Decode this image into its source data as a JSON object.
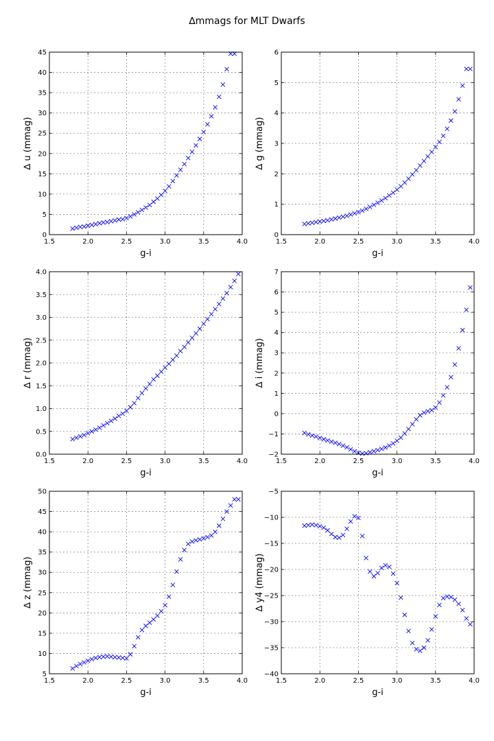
{
  "figure_title": "∆mmags for MLT Dwarfs",
  "marker_color": "#0000ff",
  "grid": true,
  "chart_data": [
    {
      "type": "scatter",
      "title": "",
      "xlabel": "g-i",
      "ylabel": "∆ u (mmag)",
      "xlim": [
        1.5,
        4.0
      ],
      "ylim": [
        0,
        45
      ],
      "xticks": [
        "1.5",
        "2.0",
        "2.5",
        "3.0",
        "3.5",
        "4.0"
      ],
      "yticks": [
        "0",
        "5",
        "10",
        "15",
        "20",
        "25",
        "30",
        "35",
        "40",
        "45"
      ],
      "x": [
        1.8,
        1.85,
        1.9,
        1.95,
        2.0,
        2.05,
        2.1,
        2.15,
        2.2,
        2.25,
        2.3,
        2.35,
        2.4,
        2.45,
        2.5,
        2.55,
        2.6,
        2.65,
        2.7,
        2.75,
        2.8,
        2.85,
        2.9,
        2.95,
        3.0,
        3.05,
        3.1,
        3.15,
        3.2,
        3.25,
        3.3,
        3.35,
        3.4,
        3.45,
        3.5,
        3.55,
        3.6,
        3.65,
        3.7,
        3.75,
        3.8,
        3.85,
        3.9
      ],
      "y": [
        1.5,
        1.7,
        1.9,
        2.0,
        2.2,
        2.4,
        2.6,
        2.8,
        3.0,
        3.1,
        3.3,
        3.5,
        3.7,
        3.8,
        4.1,
        4.5,
        5.0,
        5.5,
        6.1,
        6.7,
        7.3,
        8.1,
        8.9,
        9.8,
        10.8,
        11.9,
        13.2,
        14.6,
        16.0,
        17.4,
        18.9,
        20.4,
        22.0,
        23.6,
        25.3,
        27.2,
        29.2,
        31.4,
        34.0,
        37.0,
        40.8,
        44.6,
        44.6
      ]
    },
    {
      "type": "scatter",
      "title": "",
      "xlabel": "g-i",
      "ylabel": "∆ g (mmag)",
      "xlim": [
        1.5,
        4.0
      ],
      "ylim": [
        0,
        6
      ],
      "xticks": [
        "1.5",
        "2.0",
        "2.5",
        "3.0",
        "3.5",
        "4.0"
      ],
      "yticks": [
        "0",
        "1",
        "2",
        "3",
        "4",
        "5",
        "6"
      ],
      "x": [
        1.8,
        1.85,
        1.9,
        1.95,
        2.0,
        2.05,
        2.1,
        2.15,
        2.2,
        2.25,
        2.3,
        2.35,
        2.4,
        2.45,
        2.5,
        2.55,
        2.6,
        2.65,
        2.7,
        2.75,
        2.8,
        2.85,
        2.9,
        2.95,
        3.0,
        3.05,
        3.1,
        3.15,
        3.2,
        3.25,
        3.3,
        3.35,
        3.4,
        3.45,
        3.5,
        3.55,
        3.6,
        3.65,
        3.7,
        3.75,
        3.8,
        3.85,
        3.9,
        3.95
      ],
      "y": [
        0.35,
        0.37,
        0.39,
        0.41,
        0.43,
        0.45,
        0.47,
        0.5,
        0.53,
        0.56,
        0.59,
        0.62,
        0.66,
        0.7,
        0.74,
        0.79,
        0.85,
        0.91,
        0.98,
        1.05,
        1.12,
        1.2,
        1.29,
        1.38,
        1.48,
        1.59,
        1.71,
        1.84,
        1.98,
        2.12,
        2.27,
        2.42,
        2.57,
        2.72,
        2.88,
        3.05,
        3.25,
        3.48,
        3.75,
        4.05,
        4.45,
        4.9,
        5.45,
        5.45
      ]
    },
    {
      "type": "scatter",
      "title": "",
      "xlabel": "g-i",
      "ylabel": "∆ r (mmag)",
      "xlim": [
        1.5,
        4.0
      ],
      "ylim": [
        0,
        4
      ],
      "xticks": [
        "1.5",
        "2.0",
        "2.5",
        "3.0",
        "3.5",
        "4.0"
      ],
      "yticks": [
        "0.0",
        "0.5",
        "1.0",
        "1.5",
        "2.0",
        "2.5",
        "3.0",
        "3.5",
        "4.0"
      ],
      "x": [
        1.8,
        1.85,
        1.9,
        1.95,
        2.0,
        2.05,
        2.1,
        2.15,
        2.2,
        2.25,
        2.3,
        2.35,
        2.4,
        2.45,
        2.5,
        2.55,
        2.6,
        2.65,
        2.7,
        2.75,
        2.8,
        2.85,
        2.9,
        2.95,
        3.0,
        3.05,
        3.1,
        3.15,
        3.2,
        3.25,
        3.3,
        3.35,
        3.4,
        3.45,
        3.5,
        3.55,
        3.6,
        3.65,
        3.7,
        3.75,
        3.8,
        3.85,
        3.9,
        3.95
      ],
      "y": [
        0.33,
        0.36,
        0.39,
        0.42,
        0.46,
        0.5,
        0.54,
        0.58,
        0.63,
        0.68,
        0.73,
        0.78,
        0.84,
        0.89,
        0.95,
        1.03,
        1.12,
        1.23,
        1.34,
        1.44,
        1.54,
        1.64,
        1.72,
        1.81,
        1.9,
        1.98,
        2.07,
        2.16,
        2.26,
        2.35,
        2.45,
        2.55,
        2.65,
        2.75,
        2.86,
        2.96,
        3.07,
        3.18,
        3.29,
        3.41,
        3.53,
        3.66,
        3.8,
        3.95
      ]
    },
    {
      "type": "scatter",
      "title": "",
      "xlabel": "g-i",
      "ylabel": "∆ i (mmag)",
      "xlim": [
        1.5,
        4.0
      ],
      "ylim": [
        -2,
        7
      ],
      "xticks": [
        "1.5",
        "2.0",
        "2.5",
        "3.0",
        "3.5",
        "4.0"
      ],
      "yticks": [
        "−2",
        "−1",
        "0",
        "1",
        "2",
        "3",
        "4",
        "5",
        "6",
        "7"
      ],
      "x": [
        1.8,
        1.85,
        1.9,
        1.95,
        2.0,
        2.05,
        2.1,
        2.15,
        2.2,
        2.25,
        2.3,
        2.35,
        2.4,
        2.45,
        2.5,
        2.55,
        2.6,
        2.65,
        2.7,
        2.75,
        2.8,
        2.85,
        2.9,
        2.95,
        3.0,
        3.05,
        3.1,
        3.15,
        3.2,
        3.25,
        3.3,
        3.35,
        3.4,
        3.45,
        3.5,
        3.55,
        3.6,
        3.65,
        3.7,
        3.75,
        3.8,
        3.85,
        3.9,
        3.95
      ],
      "y": [
        -0.95,
        -1.02,
        -1.08,
        -1.13,
        -1.2,
        -1.26,
        -1.32,
        -1.38,
        -1.44,
        -1.5,
        -1.58,
        -1.66,
        -1.76,
        -1.86,
        -1.93,
        -1.97,
        -1.95,
        -1.9,
        -1.85,
        -1.8,
        -1.74,
        -1.67,
        -1.58,
        -1.47,
        -1.34,
        -1.18,
        -0.98,
        -0.76,
        -0.52,
        -0.28,
        -0.08,
        0.05,
        0.12,
        0.17,
        0.3,
        0.55,
        0.9,
        1.3,
        1.8,
        2.42,
        3.22,
        4.12,
        5.12,
        6.22
      ]
    },
    {
      "type": "scatter",
      "title": "",
      "xlabel": "g-i",
      "ylabel": "∆ z (mmag)",
      "xlim": [
        1.5,
        4.0
      ],
      "ylim": [
        5,
        50
      ],
      "xticks": [
        "1.5",
        "2.0",
        "2.5",
        "3.0",
        "3.5",
        "4.0"
      ],
      "yticks": [
        "5",
        "10",
        "15",
        "20",
        "25",
        "30",
        "35",
        "40",
        "45",
        "50"
      ],
      "x": [
        1.8,
        1.85,
        1.9,
        1.95,
        2.0,
        2.05,
        2.1,
        2.15,
        2.2,
        2.25,
        2.3,
        2.35,
        2.4,
        2.45,
        2.5,
        2.55,
        2.6,
        2.65,
        2.7,
        2.75,
        2.8,
        2.85,
        2.9,
        2.95,
        3.0,
        3.05,
        3.1,
        3.15,
        3.2,
        3.25,
        3.3,
        3.35,
        3.4,
        3.45,
        3.5,
        3.55,
        3.6,
        3.65,
        3.7,
        3.75,
        3.8,
        3.85,
        3.9,
        3.95
      ],
      "y": [
        6.3,
        6.9,
        7.4,
        7.8,
        8.2,
        8.6,
        8.9,
        9.1,
        9.2,
        9.3,
        9.2,
        9.1,
        9.0,
        8.9,
        8.8,
        9.8,
        11.8,
        14.0,
        15.8,
        16.8,
        17.6,
        18.4,
        19.3,
        20.4,
        21.9,
        24.0,
        26.9,
        30.2,
        33.2,
        35.5,
        37.0,
        37.6,
        37.9,
        38.1,
        38.4,
        38.7,
        39.1,
        40.0,
        41.5,
        43.2,
        45.0,
        46.5,
        48.0,
        48.0
      ]
    },
    {
      "type": "scatter",
      "title": "",
      "xlabel": "g-i",
      "ylabel": "∆ y4 (mmag)",
      "xlim": [
        1.5,
        4.0
      ],
      "ylim": [
        -40,
        -5
      ],
      "xticks": [
        "1.5",
        "2.0",
        "2.5",
        "3.0",
        "3.5",
        "4.0"
      ],
      "yticks": [
        "−40",
        "−35",
        "−30",
        "−25",
        "−20",
        "−15",
        "−10",
        "−5"
      ],
      "x": [
        1.8,
        1.85,
        1.9,
        1.95,
        2.0,
        2.05,
        2.1,
        2.15,
        2.2,
        2.25,
        2.3,
        2.35,
        2.4,
        2.45,
        2.5,
        2.55,
        2.6,
        2.65,
        2.7,
        2.75,
        2.8,
        2.85,
        2.9,
        2.95,
        3.0,
        3.05,
        3.1,
        3.15,
        3.2,
        3.25,
        3.3,
        3.35,
        3.4,
        3.45,
        3.5,
        3.55,
        3.6,
        3.65,
        3.7,
        3.75,
        3.8,
        3.85,
        3.9,
        3.95
      ],
      "y": [
        -11.6,
        -11.5,
        -11.4,
        -11.5,
        -11.7,
        -12.0,
        -12.5,
        -13.2,
        -13.8,
        -13.9,
        -13.4,
        -12.2,
        -10.8,
        -9.8,
        -10.1,
        -13.6,
        -17.8,
        -20.4,
        -21.3,
        -20.7,
        -19.7,
        -19.2,
        -19.5,
        -20.8,
        -22.6,
        -25.4,
        -28.7,
        -31.8,
        -34.1,
        -35.3,
        -35.6,
        -35.0,
        -33.6,
        -31.5,
        -29.0,
        -26.8,
        -25.5,
        -25.2,
        -25.3,
        -25.8,
        -26.6,
        -27.8,
        -29.4,
        -30.5
      ]
    }
  ]
}
